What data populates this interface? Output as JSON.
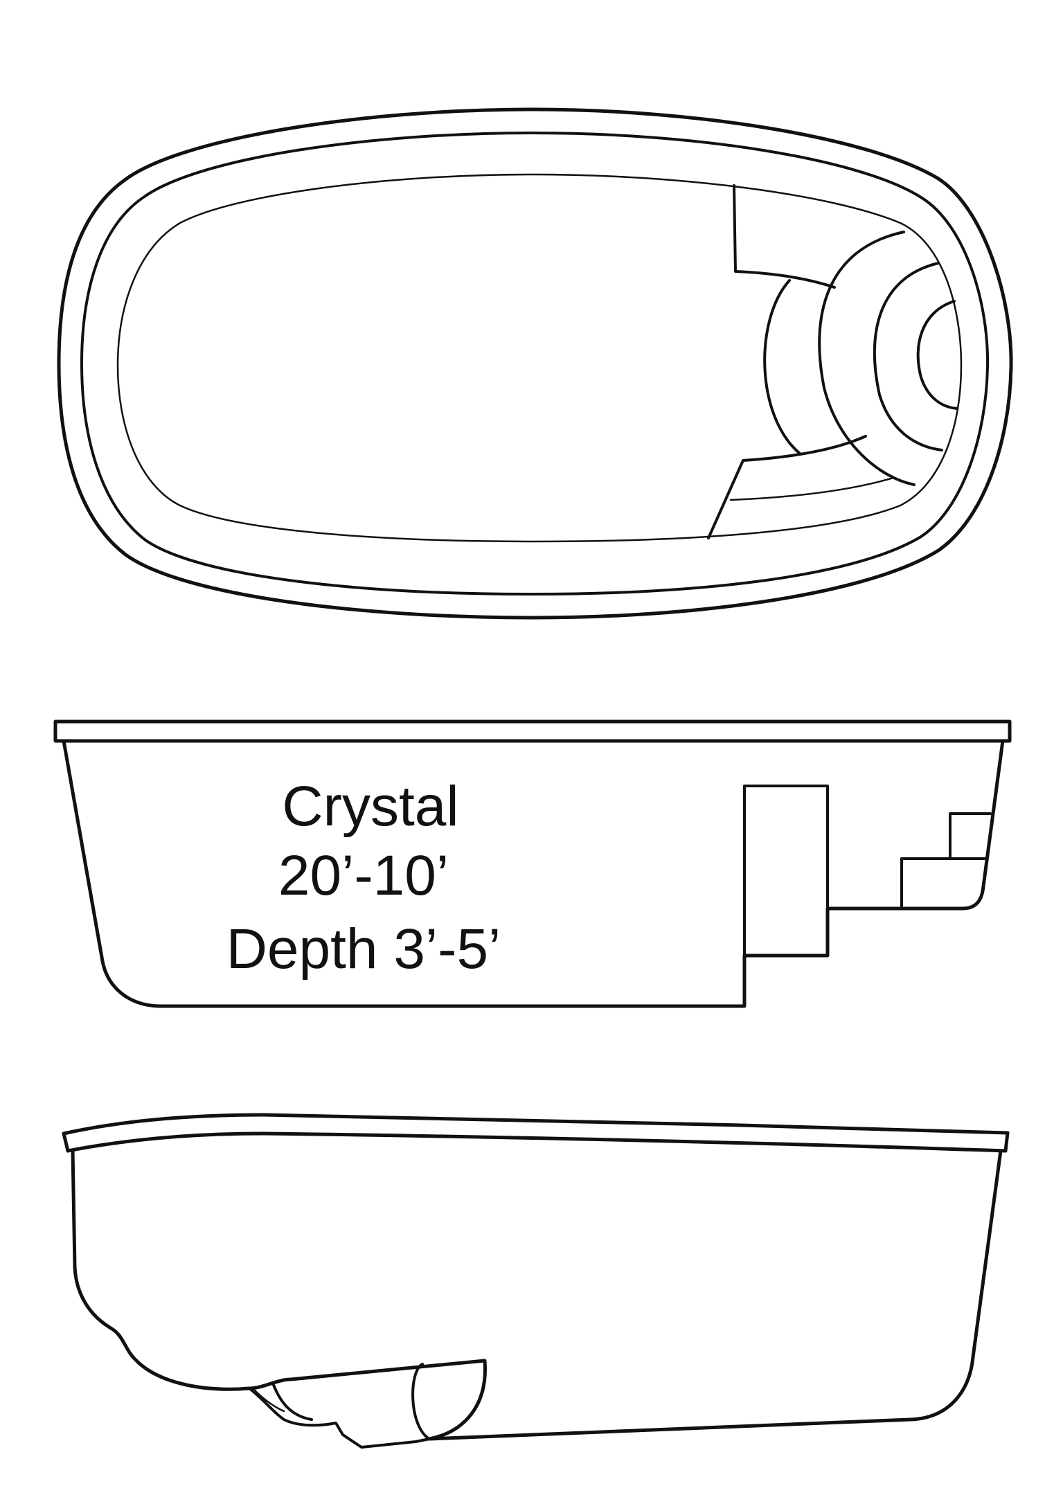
{
  "pool": {
    "name": "Crystal",
    "size": "20’-10’",
    "depth": "Depth 3’-5’"
  },
  "colors": {
    "line": "#111111",
    "background": "#ffffff"
  }
}
